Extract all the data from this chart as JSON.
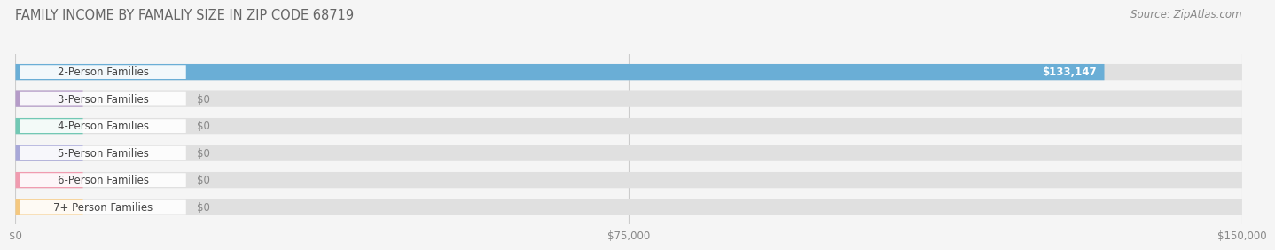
{
  "title": "FAMILY INCOME BY FAMALIY SIZE IN ZIP CODE 68719",
  "source": "Source: ZipAtlas.com",
  "categories": [
    "2-Person Families",
    "3-Person Families",
    "4-Person Families",
    "5-Person Families",
    "6-Person Families",
    "7+ Person Families"
  ],
  "values": [
    133147,
    0,
    0,
    0,
    0,
    0
  ],
  "bar_colors": [
    "#6aaed6",
    "#b59cc8",
    "#72c8b4",
    "#a8a8d8",
    "#f09cb0",
    "#f4c880"
  ],
  "xlim": [
    0,
    150000
  ],
  "xticks": [
    0,
    75000,
    150000
  ],
  "xtick_labels": [
    "$0",
    "$75,000",
    "$150,000"
  ],
  "value_label_main": "$133,147",
  "value_label_zero": "$0",
  "background_color": "#f5f5f5",
  "bar_bg_color": "#e0e0e0",
  "title_fontsize": 10.5,
  "source_fontsize": 8.5,
  "tick_fontsize": 8.5,
  "label_fontsize": 8.5,
  "value_fontsize": 8.5
}
